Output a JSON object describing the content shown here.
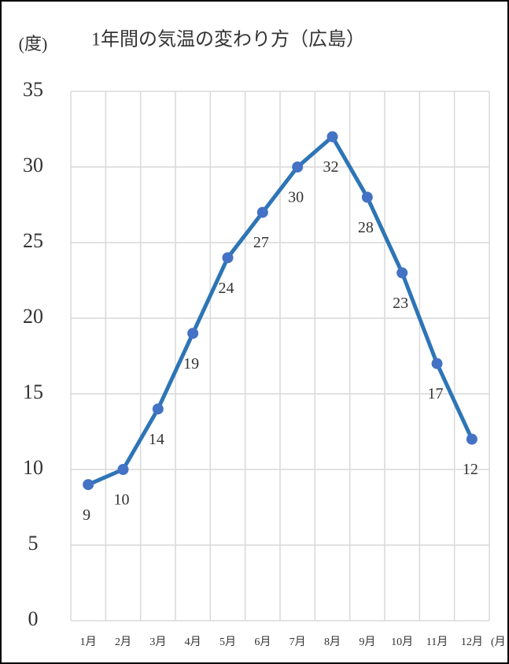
{
  "chart_data": {
    "type": "line",
    "title": "1年間の気温の変わり方（広島）",
    "y_label": "(度)",
    "x_label": "(月",
    "categories": [
      "1月",
      "2月",
      "3月",
      "4月",
      "5月",
      "6月",
      "7月",
      "8月",
      "9月",
      "10月",
      "11月",
      "12月"
    ],
    "series": [
      {
        "color": "#2e75b6",
        "marker_color": "#4472c4",
        "values": [
          9,
          10,
          14,
          19,
          24,
          27,
          30,
          32,
          28,
          23,
          17,
          12
        ]
      }
    ],
    "ylim": [
      0,
      35
    ],
    "yticks": [
      0,
      5,
      10,
      15,
      20,
      25,
      30,
      35
    ],
    "grid": true,
    "data_labels": true
  }
}
